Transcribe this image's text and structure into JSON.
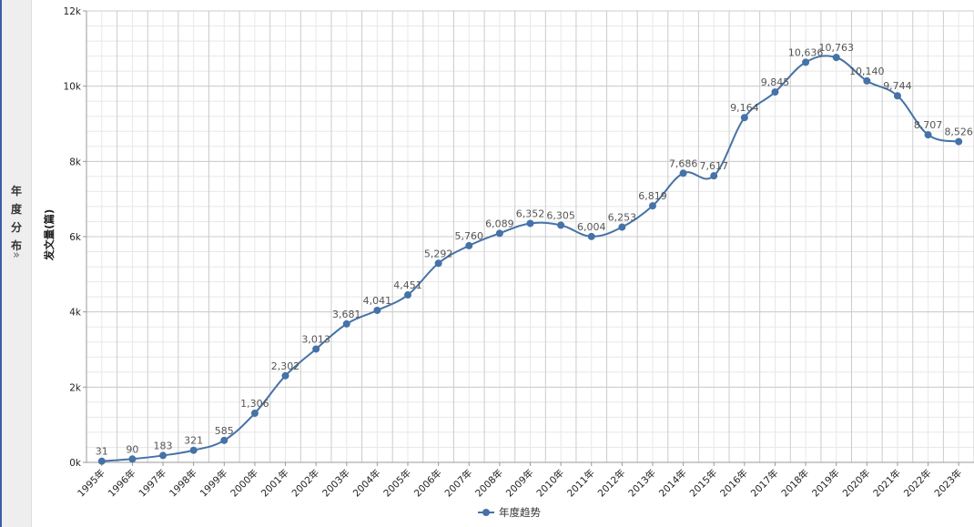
{
  "side_panel": {
    "label": "年度分布",
    "chevron": "»",
    "chevron_icon": "double-chevron-right-icon"
  },
  "colors": {
    "series": "#4572a7",
    "grid_major": "#cccccc",
    "grid_minor": "#e8e8e8",
    "side_accent": "#3b5ea8"
  },
  "chart_data": {
    "type": "line",
    "title": "",
    "xlabel": "",
    "ylabel": "发文量(篇)",
    "ylim": [
      0,
      12000
    ],
    "y_ticks": [
      {
        "value": 0,
        "label": "0k"
      },
      {
        "value": 2000,
        "label": "2k"
      },
      {
        "value": 4000,
        "label": "4k"
      },
      {
        "value": 6000,
        "label": "6k"
      },
      {
        "value": 8000,
        "label": "8k"
      },
      {
        "value": 10000,
        "label": "10k"
      },
      {
        "value": 12000,
        "label": "12k"
      }
    ],
    "categories": [
      "1995年",
      "1996年",
      "1997年",
      "1998年",
      "1999年",
      "2000年",
      "2001年",
      "2002年",
      "2003年",
      "2004年",
      "2005年",
      "2006年",
      "2007年",
      "2008年",
      "2009年",
      "2010年",
      "2011年",
      "2012年",
      "2013年",
      "2014年",
      "2015年",
      "2016年",
      "2017年",
      "2018年",
      "2019年",
      "2020年",
      "2021年",
      "2022年",
      "2023年"
    ],
    "series": [
      {
        "name": "年度趋势",
        "values": [
          31,
          90,
          183,
          321,
          585,
          1306,
          2302,
          3013,
          3681,
          4041,
          4451,
          5292,
          5760,
          6089,
          6352,
          6305,
          6004,
          6253,
          6819,
          7686,
          7617,
          9164,
          9845,
          10636,
          10763,
          10140,
          9744,
          8707,
          8526
        ],
        "labels": [
          "31",
          "90",
          "183",
          "321",
          "585",
          "1,306",
          "2,302",
          "3,013",
          "3,681",
          "4,041",
          "4,451",
          "5,292",
          "5,760",
          "6,089",
          "6,352",
          "6,305",
          "6,004",
          "6,253",
          "6,819",
          "7,686",
          "7,617",
          "9,164",
          "9,845",
          "10,636",
          "10,763",
          "10,140",
          "9,744",
          "8,707",
          "8,526"
        ]
      }
    ],
    "grid": true,
    "legend": "bottom-center"
  }
}
